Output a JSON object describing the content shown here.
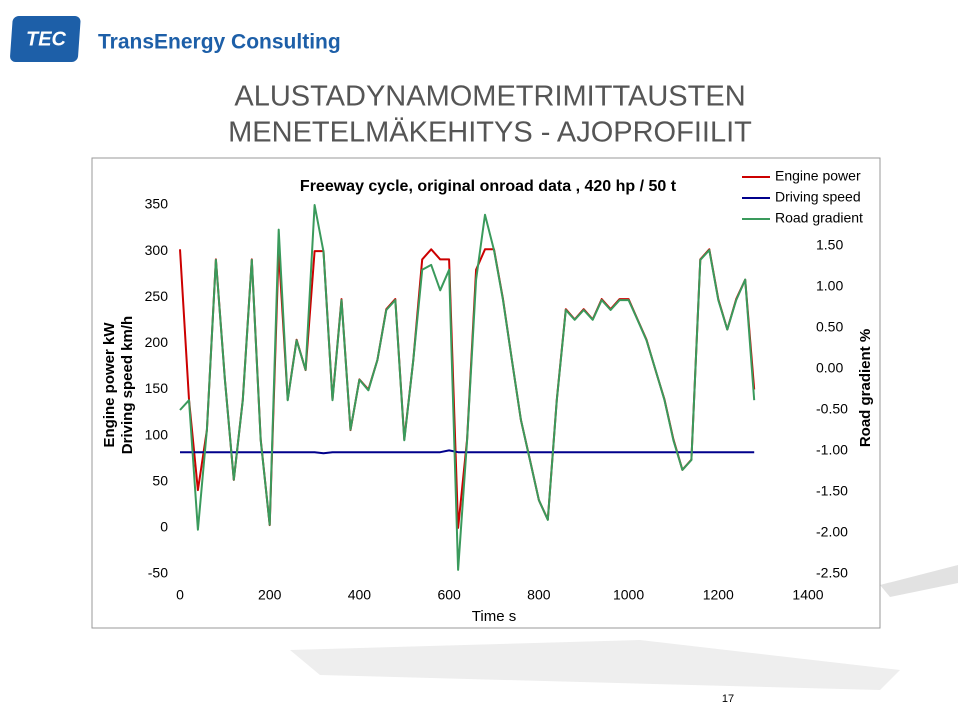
{
  "header": {
    "logo": "TEC",
    "company": "TransEnergy Consulting"
  },
  "slide_title": [
    "ALUSTADYNAMOMETRIMITTAUSTEN",
    "MENETELMÄKEHITYS - AJOPROFIILIT"
  ],
  "page_number": "17",
  "chart_data": {
    "type": "line",
    "title": "Freeway cycle, original onroad data , 420 hp / 50 t",
    "x_label": "Time s",
    "y_label": [
      "Engine power kW",
      "Driving speed km/h"
    ],
    "y2_label": "Road gradient %",
    "x": [
      0,
      20,
      40,
      60,
      80,
      100,
      120,
      140,
      160,
      180,
      200,
      220,
      240,
      260,
      280,
      300,
      320,
      340,
      360,
      380,
      400,
      420,
      440,
      460,
      480,
      500,
      520,
      540,
      560,
      580,
      600,
      620,
      640,
      660,
      680,
      700,
      720,
      740,
      760,
      780,
      800,
      820,
      840,
      860,
      880,
      900,
      920,
      940,
      960,
      980,
      1000,
      1020,
      1040,
      1060,
      1080,
      1100,
      1120,
      1140,
      1160,
      1180,
      1200,
      1220,
      1240,
      1260,
      1280
    ],
    "series": [
      {
        "name": "Engine power",
        "color": "#cc0000",
        "axis": "y",
        "values": [
          302,
          139,
          41,
          106,
          291,
          161,
          52,
          139,
          291,
          96,
          3,
          302,
          139,
          204,
          171,
          300,
          300,
          139,
          248,
          106,
          161,
          150,
          182,
          237,
          248,
          96,
          182,
          291,
          302,
          291,
          291,
          0,
          96,
          280,
          302,
          302,
          248,
          182,
          117,
          74,
          30,
          9,
          139,
          237,
          226,
          237,
          226,
          248,
          237,
          248,
          248,
          226,
          204,
          171,
          139,
          96,
          63,
          74,
          291,
          302,
          248,
          215,
          248,
          269,
          150
        ]
      },
      {
        "name": "Driving speed",
        "color": "#00008b",
        "axis": "y",
        "values": [
          82,
          82,
          82,
          82,
          82,
          82,
          82,
          82,
          82,
          82,
          82,
          82,
          82,
          82,
          82,
          82,
          81,
          82,
          82,
          82,
          82,
          82,
          82,
          82,
          82,
          82,
          82,
          82,
          82,
          82,
          84,
          82,
          82,
          82,
          82,
          82,
          82,
          82,
          82,
          82,
          82,
          82,
          82,
          82,
          82,
          82,
          82,
          82,
          82,
          82,
          82,
          82,
          82,
          82,
          82,
          82,
          82,
          82,
          82,
          82,
          82,
          82,
          82,
          82,
          82
        ]
      },
      {
        "name": "Road gradient",
        "color": "#3a9a5c",
        "axis": "y2",
        "values": [
          -0.5,
          -0.38,
          -1.96,
          -0.74,
          1.33,
          -0.13,
          -1.35,
          -0.38,
          1.33,
          -0.87,
          -1.9,
          1.7,
          -0.38,
          0.35,
          -0.01,
          2.0,
          1.43,
          -0.38,
          0.84,
          -0.74,
          -0.13,
          -0.26,
          0.11,
          0.72,
          0.84,
          -0.87,
          0.11,
          1.21,
          1.27,
          0.96,
          1.21,
          -2.45,
          -0.87,
          1.09,
          1.88,
          1.45,
          0.84,
          0.11,
          -0.62,
          -1.11,
          -1.6,
          -1.84,
          -0.38,
          0.72,
          0.6,
          0.72,
          0.6,
          0.84,
          0.72,
          0.84,
          0.84,
          0.6,
          0.35,
          -0.01,
          -0.38,
          -0.87,
          -1.23,
          -1.11,
          1.33,
          1.45,
          0.84,
          0.48,
          0.84,
          1.09,
          -0.38
        ]
      }
    ],
    "xlim": [
      0,
      1400
    ],
    "xticks": [
      0,
      200,
      400,
      600,
      800,
      1000,
      1200,
      1400
    ],
    "ylim": [
      -50,
      350
    ],
    "yticks": [
      -50,
      0,
      50,
      100,
      150,
      200,
      250,
      300,
      350
    ],
    "y2lim": [
      -2.5,
      2.0
    ],
    "y2ticks": [
      {
        "value": -2.5,
        "label": "-2.50"
      },
      {
        "value": -2,
        "label": "-2.00"
      },
      {
        "value": -1.5,
        "label": "-1.50"
      },
      {
        "value": -1,
        "label": "-1.00"
      },
      {
        "value": -0.5,
        "label": "-0.50"
      },
      {
        "value": 0,
        "label": "0.00"
      },
      {
        "value": 0.5,
        "label": "0.50"
      },
      {
        "value": 1,
        "label": "1.00"
      },
      {
        "value": 1.5,
        "label": "1.50"
      }
    ],
    "legend": "top-right",
    "grid": false
  }
}
